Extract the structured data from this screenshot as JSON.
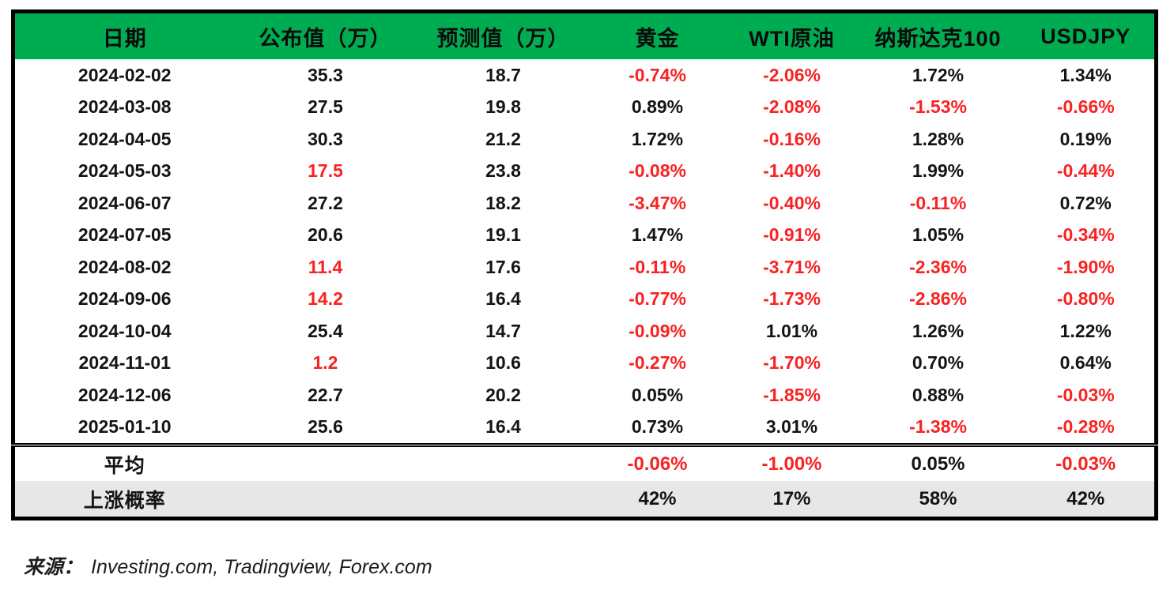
{
  "colors": {
    "header_green": "#00AC51",
    "negative_red": "#F82222",
    "text_black": "#141414",
    "prob_row_gray": "#E7E7E7",
    "border_black": "#000000"
  },
  "table": {
    "headers": {
      "date": "日期",
      "published": "公布值（万）",
      "forecast": "预测值（万）",
      "gold": "黄金",
      "wti": "WTI原油",
      "nasdaq": "纳斯达克100",
      "usdjpy": "USDJPY"
    },
    "rows": [
      {
        "date": "2024-02-02",
        "published": "35.3",
        "published_red": false,
        "forecast": "18.7",
        "gold": "-0.74%",
        "wti": "-2.06%",
        "nasdaq": "1.72%",
        "usdjpy": "1.34%"
      },
      {
        "date": "2024-03-08",
        "published": "27.5",
        "published_red": false,
        "forecast": "19.8",
        "gold": "0.89%",
        "wti": "-2.08%",
        "nasdaq": "-1.53%",
        "usdjpy": "-0.66%"
      },
      {
        "date": "2024-04-05",
        "published": "30.3",
        "published_red": false,
        "forecast": "21.2",
        "gold": "1.72%",
        "wti": "-0.16%",
        "nasdaq": "1.28%",
        "usdjpy": "0.19%"
      },
      {
        "date": "2024-05-03",
        "published": "17.5",
        "published_red": true,
        "forecast": "23.8",
        "gold": "-0.08%",
        "wti": "-1.40%",
        "nasdaq": "1.99%",
        "usdjpy": "-0.44%"
      },
      {
        "date": "2024-06-07",
        "published": "27.2",
        "published_red": false,
        "forecast": "18.2",
        "gold": "-3.47%",
        "wti": "-0.40%",
        "nasdaq": "-0.11%",
        "usdjpy": "0.72%"
      },
      {
        "date": "2024-07-05",
        "published": "20.6",
        "published_red": false,
        "forecast": "19.1",
        "gold": "1.47%",
        "wti": "-0.91%",
        "nasdaq": "1.05%",
        "usdjpy": "-0.34%"
      },
      {
        "date": "2024-08-02",
        "published": "11.4",
        "published_red": true,
        "forecast": "17.6",
        "gold": "-0.11%",
        "wti": "-3.71%",
        "nasdaq": "-2.36%",
        "usdjpy": "-1.90%"
      },
      {
        "date": "2024-09-06",
        "published": "14.2",
        "published_red": true,
        "forecast": "16.4",
        "gold": "-0.77%",
        "wti": "-1.73%",
        "nasdaq": "-2.86%",
        "usdjpy": "-0.80%"
      },
      {
        "date": "2024-10-04",
        "published": "25.4",
        "published_red": false,
        "forecast": "14.7",
        "gold": "-0.09%",
        "wti": "1.01%",
        "nasdaq": "1.26%",
        "usdjpy": "1.22%"
      },
      {
        "date": "2024-11-01",
        "published": "1.2",
        "published_red": true,
        "forecast": "10.6",
        "gold": "-0.27%",
        "wti": "-1.70%",
        "nasdaq": "0.70%",
        "usdjpy": "0.64%"
      },
      {
        "date": "2024-12-06",
        "published": "22.7",
        "published_red": false,
        "forecast": "20.2",
        "gold": "0.05%",
        "wti": "-1.85%",
        "nasdaq": "0.88%",
        "usdjpy": "-0.03%"
      },
      {
        "date": "2025-01-10",
        "published": "25.6",
        "published_red": false,
        "forecast": "16.4",
        "gold": "0.73%",
        "wti": "3.01%",
        "nasdaq": "-1.38%",
        "usdjpy": "-0.28%"
      }
    ],
    "summary_rows": [
      {
        "label": "平均",
        "published": "",
        "forecast": "",
        "gold": "-0.06%",
        "wti": "-1.00%",
        "nasdaq": "0.05%",
        "usdjpy": "-0.03%",
        "color_negatives": true
      },
      {
        "label": "上涨概率",
        "published": "",
        "forecast": "",
        "gold": "42%",
        "wti": "17%",
        "nasdaq": "58%",
        "usdjpy": "42%",
        "color_negatives": false
      }
    ]
  },
  "source": {
    "prefix": "来源：",
    "text": "Investing.com, Tradingview, Forex.com"
  }
}
